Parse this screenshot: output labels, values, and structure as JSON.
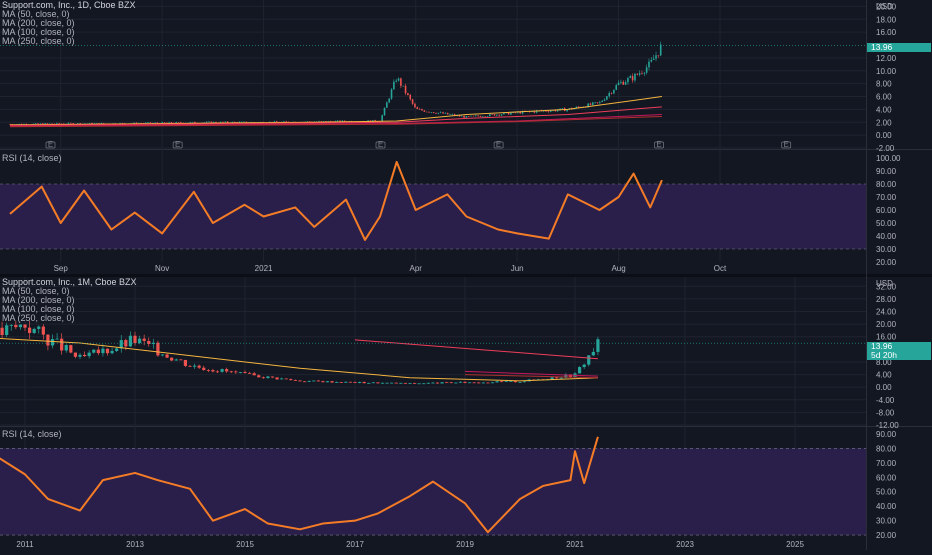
{
  "top_panel": {
    "title": "Support.com, Inc., 1D, Cboe BZX",
    "ma_legend": [
      "MA (50, close, 0)",
      "MA (200, close, 0)",
      "MA (100, close, 0)",
      "MA (250, close, 0)"
    ],
    "currency": "USD",
    "last_price": "13.96",
    "price_ticks": [
      "20.00",
      "18.00",
      "16.00",
      "12.00",
      "10.00",
      "8.00",
      "6.00",
      "4.00",
      "2.00",
      "0.00",
      "-2.00"
    ],
    "rsi_label": "RSI (14, close)",
    "rsi_ticks": [
      "100.00",
      "90.00",
      "80.00",
      "70.00",
      "60.00",
      "50.00",
      "40.00",
      "30.00",
      "20.00"
    ],
    "time_ticks": [
      "Sep",
      "Nov",
      "2021",
      "Apr",
      "Jun",
      "Aug",
      "Oct"
    ],
    "earnings_marker": "E"
  },
  "bottom_panel": {
    "title": "Support.com, Inc., 1M, Cboe BZX",
    "ma_legend": [
      "MA (50, close, 0)",
      "MA (200, close, 0)",
      "MA (100, close, 0)",
      "MA (250, close, 0)"
    ],
    "currency": "USD",
    "last_price": "13.96",
    "countdown": "5d 20h",
    "price_ticks": [
      "32.00",
      "28.00",
      "24.00",
      "20.00",
      "16.00",
      "8.00",
      "4.00",
      "0.00",
      "-4.00",
      "-8.00",
      "-12.00"
    ],
    "rsi_label": "RSI (14, close)",
    "rsi_ticks": [
      "90.00",
      "80.00",
      "70.00",
      "60.00",
      "50.00",
      "40.00",
      "30.00",
      "20.00"
    ],
    "time_ticks": [
      "2011",
      "2013",
      "2015",
      "2017",
      "2019",
      "2021",
      "2023",
      "2025"
    ]
  },
  "colors": {
    "background": "#131722",
    "text": "#b2b5be",
    "grid": "#1f2330",
    "up": "#26a69a",
    "down": "#ef5350",
    "rsi_line": "#f57c27",
    "rsi_band": "#2a1f4a",
    "ma50": "#f5b53f",
    "ma100": "#ef3d5a",
    "ma200": "#c2185b",
    "ma250": "#b0302f",
    "price_tag": "#26a69a"
  },
  "chart_data": [
    {
      "type": "candlestick",
      "timeframe": "1D",
      "x_range": [
        "2020-08",
        "2021-10"
      ],
      "ylim": [
        -2,
        21
      ],
      "x": [
        "2020-08",
        "2020-09",
        "2020-10",
        "2020-11",
        "2020-12",
        "2021-01",
        "2021-02",
        "2021-03-10",
        "2021-03-20",
        "2021-04",
        "2021-05",
        "2021-06",
        "2021-07",
        "2021-07-20",
        "2021-08-01",
        "2021-08-10",
        "2021-08-20",
        "2021-08-27"
      ],
      "close": [
        1.7,
        1.8,
        1.8,
        1.9,
        2.0,
        2.0,
        2.1,
        2.2,
        9.0,
        4.0,
        2.8,
        3.5,
        4.0,
        5.0,
        8.0,
        9.0,
        11.0,
        13.96
      ],
      "series": [
        {
          "name": "MA (50, close, 0)",
          "x": [
            "2020-08",
            "2021-02",
            "2021-03-20",
            "2021-05",
            "2021-07",
            "2021-08-27"
          ],
          "values": [
            1.6,
            2.0,
            2.2,
            3.2,
            4.0,
            6.0
          ]
        },
        {
          "name": "MA (100, close, 0)",
          "x": [
            "2020-08",
            "2021-03-20",
            "2021-05",
            "2021-07",
            "2021-08-27"
          ],
          "values": [
            1.5,
            2.0,
            2.6,
            3.2,
            4.4
          ]
        },
        {
          "name": "MA (200, close, 0)",
          "x": [
            "2020-08",
            "2021-03-20",
            "2021-06",
            "2021-08-27"
          ],
          "values": [
            1.4,
            1.8,
            2.2,
            3.2
          ]
        },
        {
          "name": "MA (250, close, 0)",
          "x": [
            "2020-08",
            "2021-03-20",
            "2021-06",
            "2021-08-27"
          ],
          "values": [
            1.3,
            1.7,
            2.1,
            2.9
          ]
        }
      ]
    },
    {
      "type": "line",
      "indicator": "RSI (14, close)",
      "timeframe": "1D",
      "x_range": [
        "2020-08",
        "2021-10"
      ],
      "ylim": [
        20,
        100
      ],
      "bands": [
        30,
        80
      ],
      "x": [
        "2020-08",
        "2020-08-20",
        "2020-09",
        "2020-09-15",
        "2020-10",
        "2020-10-15",
        "2020-11",
        "2020-11-20",
        "2020-12",
        "2020-12-20",
        "2021-01",
        "2021-01-20",
        "2021-02",
        "2021-02-20",
        "2021-03",
        "2021-03-10",
        "2021-03-20",
        "2021-04",
        "2021-04-20",
        "2021-05",
        "2021-05-20",
        "2021-06",
        "2021-06-20",
        "2021-07",
        "2021-07-20",
        "2021-08",
        "2021-08-10",
        "2021-08-20",
        "2021-08-27"
      ],
      "values": [
        57,
        78,
        50,
        75,
        45,
        58,
        42,
        74,
        50,
        64,
        55,
        62,
        47,
        68,
        37,
        55,
        97,
        60,
        72,
        55,
        45,
        42,
        38,
        72,
        60,
        70,
        88,
        62,
        83
      ]
    },
    {
      "type": "candlestick",
      "timeframe": "1M",
      "x_range": [
        "2010",
        "2026"
      ],
      "ylim": [
        -12,
        34
      ],
      "x": [
        "2010",
        "2011",
        "2012",
        "2013",
        "2014",
        "2015",
        "2016",
        "2017",
        "2018",
        "2019",
        "2020",
        "2021",
        "2021-06"
      ],
      "close": [
        14,
        20,
        9,
        15,
        7,
        4,
        2,
        1.5,
        1.2,
        1.5,
        1.8,
        4,
        13.96
      ],
      "series": [
        {
          "name": "MA (50, close, 0)",
          "x": [
            "2010",
            "2012",
            "2014",
            "2016",
            "2018",
            "2020",
            "2021-06"
          ],
          "values": [
            16,
            14,
            10,
            6,
            3,
            2,
            3
          ]
        },
        {
          "name": "MA (100, close, 0)",
          "x": [
            "2017",
            "2021-06"
          ],
          "values": [
            15,
            9
          ]
        },
        {
          "name": "MA (200, close, 0)",
          "x": [
            "2019",
            "2021-06"
          ],
          "values": [
            5,
            3.5
          ]
        },
        {
          "name": "MA (250, close, 0)",
          "x": [
            "2019",
            "2021-06"
          ],
          "values": [
            4,
            3
          ]
        }
      ]
    },
    {
      "type": "line",
      "indicator": "RSI (14, close)",
      "timeframe": "1M",
      "x_range": [
        "2010",
        "2026"
      ],
      "ylim": [
        18,
        92
      ],
      "bands": [
        20,
        80
      ],
      "x": [
        "2010",
        "2010-06",
        "2011",
        "2011-06",
        "2012",
        "2012-06",
        "2013",
        "2013-06",
        "2014",
        "2014-06",
        "2015",
        "2015-06",
        "2016",
        "2016-06",
        "2017",
        "2017-06",
        "2018",
        "2018-06",
        "2019",
        "2019-06",
        "2020",
        "2020-06",
        "2020-12",
        "2021",
        "2021-03",
        "2021-06"
      ],
      "values": [
        40,
        76,
        62,
        45,
        37,
        58,
        63,
        58,
        52,
        30,
        38,
        28,
        24,
        28,
        30,
        35,
        47,
        57,
        42,
        22,
        45,
        54,
        58,
        78,
        56,
        88
      ]
    }
  ]
}
